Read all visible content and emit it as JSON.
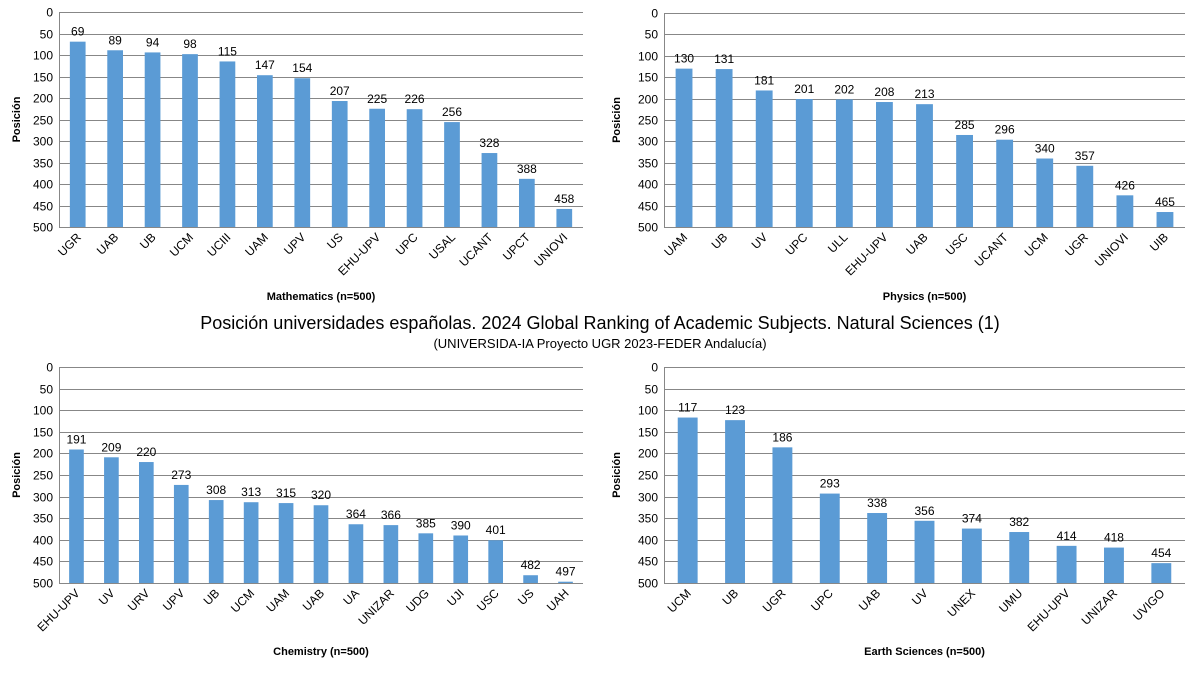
{
  "figure": {
    "title": "Posición universidades españolas. 2024 Global Ranking of Academic Subjects. Natural Sciences (1)",
    "subtitle": "(UNIVERSIDA-IA Proyecto UGR 2023-FEDER Andalucía)"
  },
  "chart_data": [
    {
      "type": "bar",
      "xlabel": "Mathematics (n=500)",
      "ylabel": "Posición",
      "ylim": [
        0,
        500
      ],
      "y_inverted": true,
      "y_ticks": [
        0,
        50,
        100,
        150,
        200,
        250,
        300,
        350,
        400,
        450,
        500
      ],
      "grid": true,
      "bar_color": "#5b9bd5",
      "categories": [
        "UGR",
        "UAB",
        "UB",
        "UCM",
        "UCIII",
        "UAM",
        "UPV",
        "US",
        "EHU-UPV",
        "UPC",
        "USAL",
        "UCANT",
        "UPCT",
        "UNIOVI"
      ],
      "values": [
        69,
        89,
        94,
        98,
        115,
        147,
        154,
        207,
        225,
        226,
        256,
        328,
        388,
        458
      ]
    },
    {
      "type": "bar",
      "xlabel": "Physics  (n=500)",
      "ylabel": "Posición",
      "ylim": [
        0,
        500
      ],
      "y_inverted": true,
      "y_ticks": [
        0,
        50,
        100,
        150,
        200,
        250,
        300,
        350,
        400,
        450,
        500
      ],
      "grid": true,
      "bar_color": "#5b9bd5",
      "categories": [
        "UAM",
        "UB",
        "UV",
        "UPC",
        "ULL",
        "EHU-UPV",
        "UAB",
        "USC",
        "UCANT",
        "UCM",
        "UGR",
        "UNIOVI",
        "UIB"
      ],
      "values": [
        130,
        131,
        181,
        201,
        202,
        208,
        213,
        285,
        296,
        340,
        357,
        426,
        465
      ]
    },
    {
      "type": "bar",
      "xlabel": "Chemistry  (n=500)",
      "ylabel": "Posición",
      "ylim": [
        0,
        500
      ],
      "y_inverted": true,
      "y_ticks": [
        0,
        50,
        100,
        150,
        200,
        250,
        300,
        350,
        400,
        450,
        500
      ],
      "grid": true,
      "bar_color": "#5b9bd5",
      "categories": [
        "EHU-UPV",
        "UV",
        "URV",
        "UPV",
        "UB",
        "UCM",
        "UAM",
        "UAB",
        "UA",
        "UNIZAR",
        "UDG",
        "UJI",
        "USC",
        "US",
        "UAH"
      ],
      "values": [
        191,
        209,
        220,
        273,
        308,
        313,
        315,
        320,
        364,
        366,
        385,
        390,
        401,
        482,
        497
      ]
    },
    {
      "type": "bar",
      "xlabel": "Earth  Sciences (n=500)",
      "ylabel": "Posición",
      "ylim": [
        0,
        500
      ],
      "y_inverted": true,
      "y_ticks": [
        0,
        50,
        100,
        150,
        200,
        250,
        300,
        350,
        400,
        450,
        500
      ],
      "grid": true,
      "bar_color": "#5b9bd5",
      "categories": [
        "UCM",
        "UB",
        "UGR",
        "UPC",
        "UAB",
        "UV",
        "UNEX",
        "UMU",
        "EHU-UPV",
        "UNIZAR",
        "UVIGO"
      ],
      "values": [
        117,
        123,
        186,
        293,
        338,
        356,
        374,
        382,
        414,
        418,
        454
      ]
    }
  ]
}
